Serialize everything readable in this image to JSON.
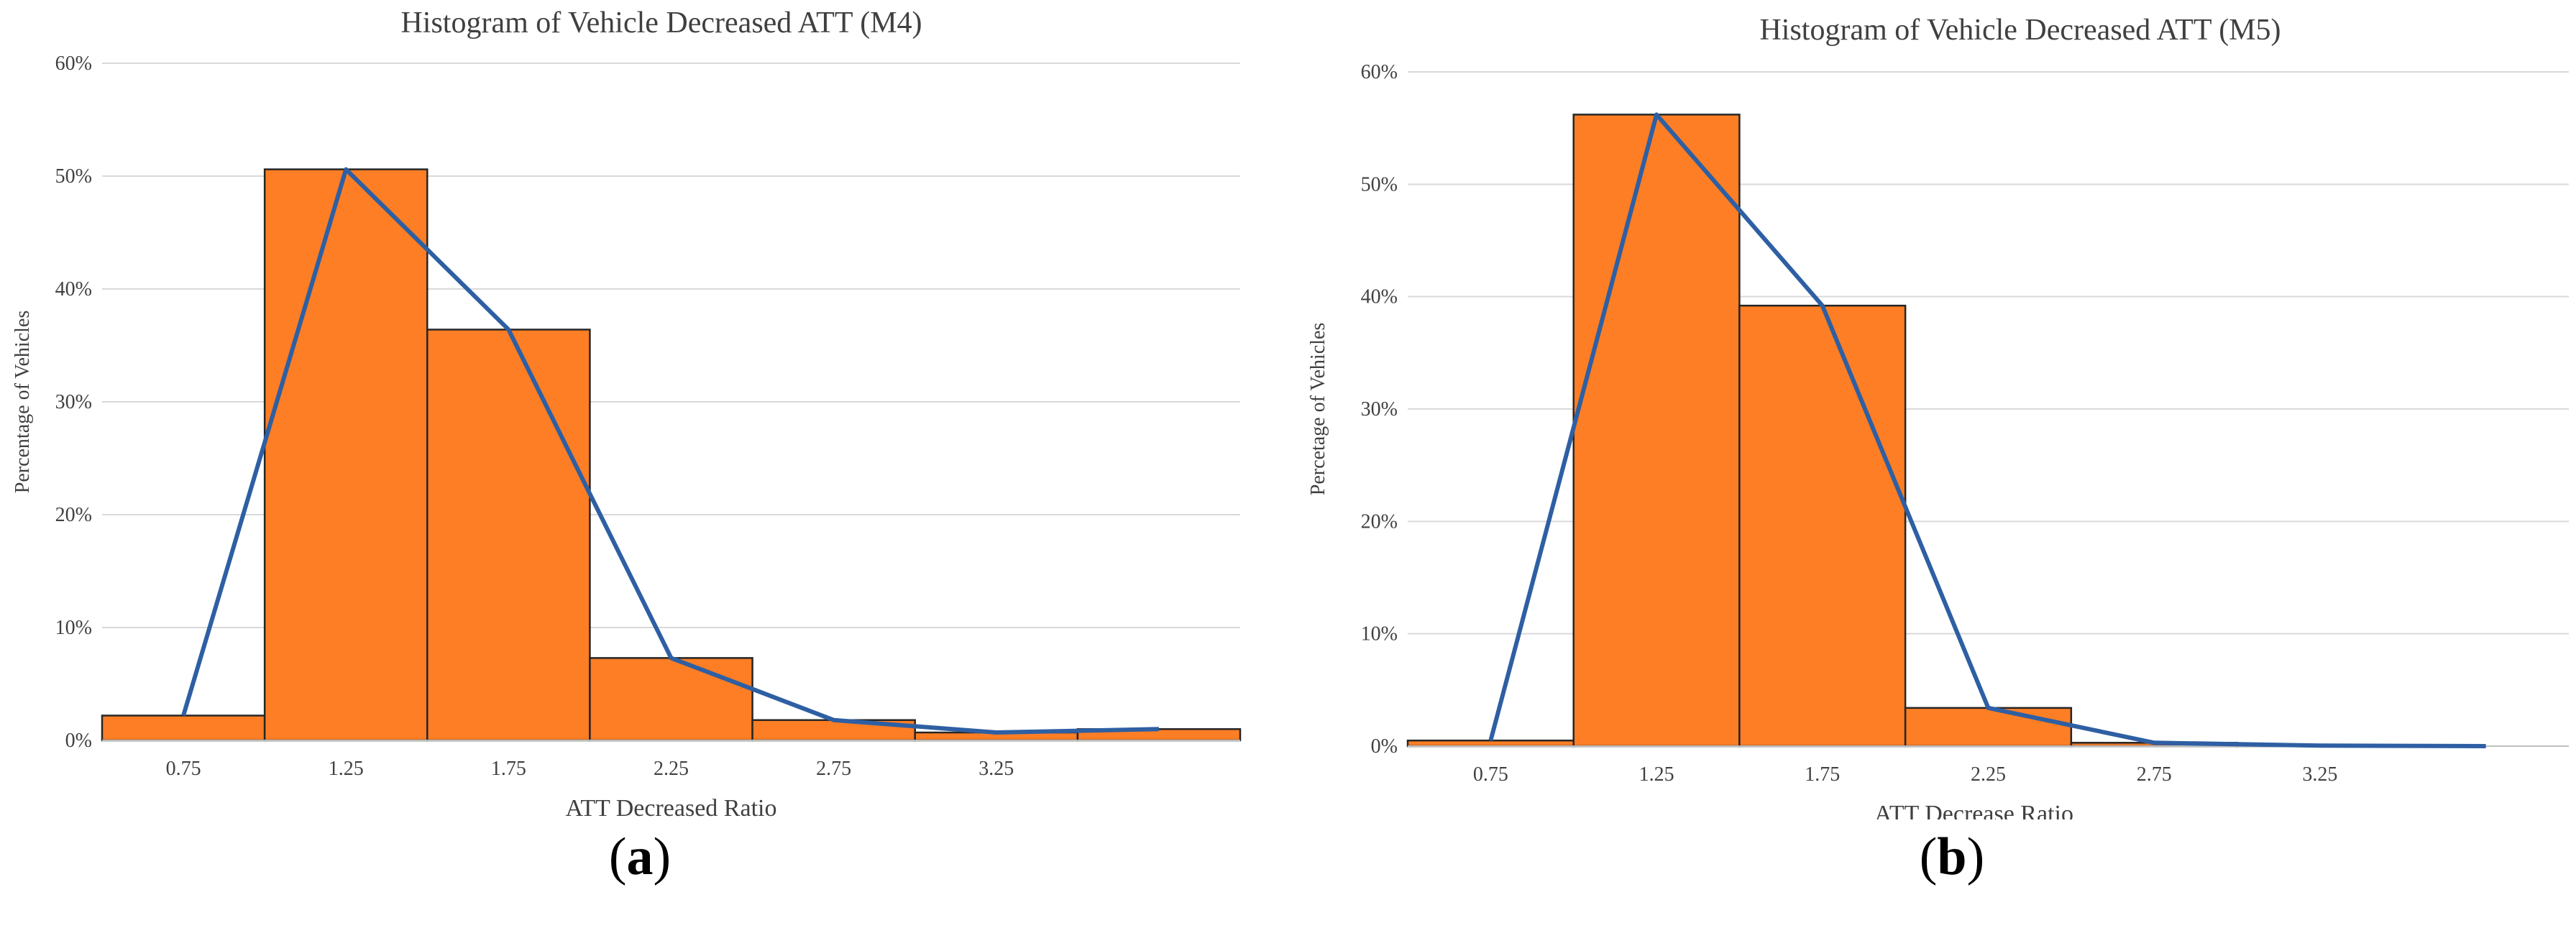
{
  "chart_data": [
    {
      "type": "bar",
      "title": "Histogram of Vehicle Decreased ATT (M4)",
      "xlabel": "ATT Decreased Ratio",
      "ylabel": "Percentage of Vehicles",
      "x_tick_labels": [
        "0.75",
        "1.25",
        "1.75",
        "2.25",
        "2.75",
        "3.25"
      ],
      "y_tick_labels": [
        "0%",
        "10%",
        "20%",
        "30%",
        "40%",
        "50%",
        "60%"
      ],
      "ylim": [
        0,
        60
      ],
      "bins": [
        [
          0.5,
          1.0
        ],
        [
          1.0,
          1.5
        ],
        [
          1.5,
          2.0
        ],
        [
          2.0,
          2.5
        ],
        [
          2.5,
          3.0
        ],
        [
          3.0,
          3.5
        ],
        [
          3.5,
          4.0
        ]
      ],
      "values": [
        2.2,
        50.6,
        36.4,
        7.3,
        1.8,
        0.7,
        1.0
      ],
      "line": {
        "x": [
          0.75,
          1.25,
          1.75,
          2.25,
          2.75,
          3.25,
          3.75
        ],
        "y": [
          2.2,
          50.6,
          36.4,
          7.3,
          1.8,
          0.7,
          1.0
        ]
      },
      "grid": true,
      "colors": {
        "bar": "#fd7e24",
        "line": "#2e5fa3"
      },
      "caption": "a"
    },
    {
      "type": "bar",
      "title": "Histogram of Vehicle Decreased ATT (M5)",
      "xlabel": "ATT Decrease Ratio",
      "ylabel": "Percetage of Vehicles",
      "x_tick_labels": [
        "0.75",
        "1.25",
        "1.75",
        "2.25",
        "2.75",
        "3.25"
      ],
      "y_tick_labels": [
        "0%",
        "10%",
        "20%",
        "30%",
        "40%",
        "50%",
        "60%"
      ],
      "ylim": [
        0,
        60
      ],
      "bins": [
        [
          0.5,
          1.0
        ],
        [
          1.0,
          1.5
        ],
        [
          1.5,
          2.0
        ],
        [
          2.0,
          2.5
        ],
        [
          2.5,
          3.0
        ],
        [
          3.0,
          3.5
        ],
        [
          3.5,
          4.0
        ]
      ],
      "values": [
        0.5,
        56.2,
        39.2,
        3.4,
        0.3,
        0.05,
        0.0
      ],
      "line": {
        "x": [
          0.75,
          1.25,
          1.75,
          2.25,
          2.75,
          3.25,
          3.75
        ],
        "y": [
          0.5,
          56.2,
          39.2,
          3.4,
          0.3,
          0.05,
          0.0
        ]
      },
      "grid": true,
      "colors": {
        "bar": "#fd7e24",
        "line": "#2e5fa3"
      },
      "caption": "b"
    }
  ]
}
